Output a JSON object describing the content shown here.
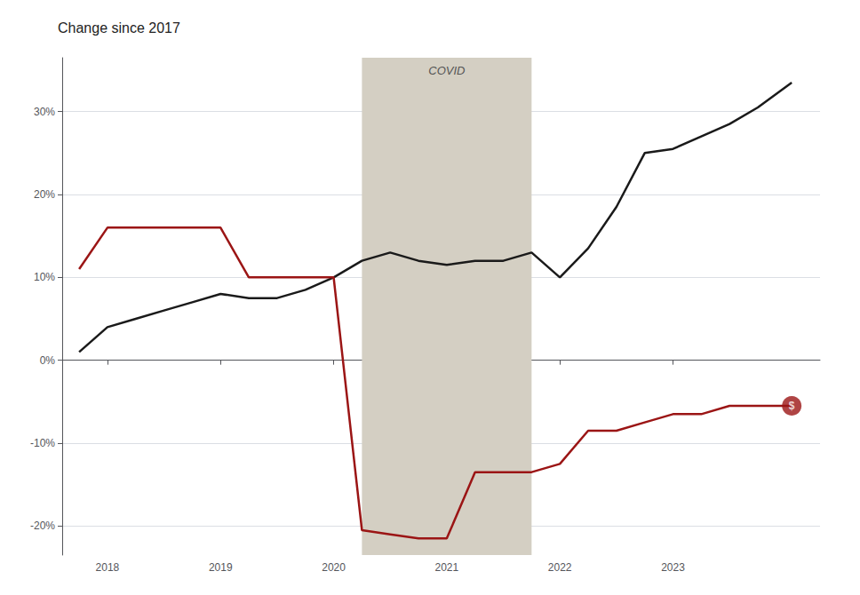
{
  "chart_data": {
    "type": "line",
    "title": "Change since 2017",
    "xlim": [
      2017.6,
      2024.3
    ],
    "xticks": [
      2018,
      2019,
      2020,
      2021,
      2022,
      2023
    ],
    "ylim": [
      -0.235,
      0.365
    ],
    "yticks": [
      {
        "value": -0.2,
        "label": "-20%"
      },
      {
        "value": -0.1,
        "label": "-10%"
      },
      {
        "value": 0.0,
        "label": "0%"
      },
      {
        "value": 0.1,
        "label": "10%"
      },
      {
        "value": 0.2,
        "label": "20%"
      },
      {
        "value": 0.3,
        "label": "30%"
      }
    ],
    "grid": true,
    "series": [
      {
        "color": "#1a1a1a",
        "x": [
          2017.75,
          2018.0,
          2018.25,
          2018.5,
          2018.75,
          2019.0,
          2019.25,
          2019.5,
          2019.75,
          2020.0,
          2020.25,
          2020.5,
          2020.75,
          2021.0,
          2021.25,
          2021.5,
          2021.75,
          2022.0,
          2022.25,
          2022.5,
          2022.75,
          2023.0,
          2023.25,
          2023.5,
          2023.75,
          2024.05
        ],
        "values": [
          0.01,
          0.04,
          0.05,
          0.06,
          0.07,
          0.08,
          0.075,
          0.075,
          0.085,
          0.1,
          0.12,
          0.13,
          0.12,
          0.115,
          0.12,
          0.12,
          0.13,
          0.1,
          0.135,
          0.185,
          0.25,
          0.255,
          0.27,
          0.285,
          0.305,
          0.335
        ]
      },
      {
        "color": "#9b1515",
        "x": [
          2017.75,
          2018.0,
          2018.5,
          2019.0,
          2019.25,
          2019.75,
          2020.0,
          2020.25,
          2020.5,
          2020.75,
          2021.0,
          2021.25,
          2021.5,
          2021.75,
          2022.0,
          2022.25,
          2022.5,
          2022.75,
          2023.0,
          2023.25,
          2023.5,
          2023.75,
          2024.05
        ],
        "values": [
          0.11,
          0.16,
          0.16,
          0.16,
          0.1,
          0.1,
          0.1,
          -0.205,
          -0.21,
          -0.215,
          -0.215,
          -0.135,
          -0.135,
          -0.135,
          -0.125,
          -0.085,
          -0.085,
          -0.075,
          -0.065,
          -0.065,
          -0.055,
          -0.055,
          -0.055
        ]
      }
    ],
    "shaded_regions": [
      {
        "label": "COVID",
        "x_start": 2020.25,
        "x_end": 2021.75,
        "color": "#d4cfc3"
      }
    ],
    "annotations": [
      {
        "text": "$",
        "x": 2024.05,
        "y": -0.055,
        "color": "#9b1515"
      }
    ]
  }
}
